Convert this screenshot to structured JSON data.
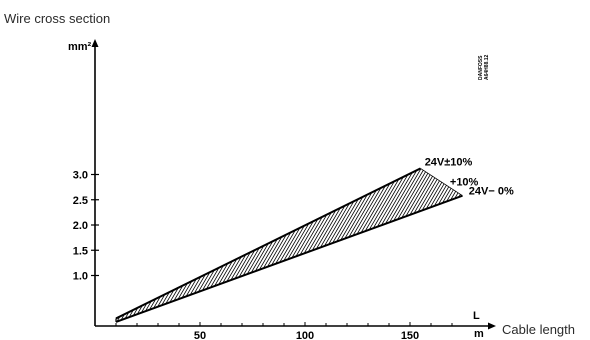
{
  "chart_data": {
    "type": "area",
    "title": "Wire cross section",
    "xlabel": "Cable length",
    "ylabel": "",
    "x_axis_symbol": "L",
    "x_unit": "m",
    "y_unit": "mm²",
    "x_ticks": [
      50,
      100,
      150
    ],
    "y_ticks": [
      "1.0",
      "1.5",
      "2.0",
      "2.5",
      "3.0"
    ],
    "xlim": [
      0,
      180
    ],
    "ylim": [
      0,
      3.6
    ],
    "series": [
      {
        "name": "24V±10%",
        "points": [
          {
            "x": 10,
            "y": 0.15
          },
          {
            "x": 155,
            "y": 3.12
          }
        ]
      },
      {
        "name": "24V+10% −0%",
        "points": [
          {
            "x": 10,
            "y": 0.08
          },
          {
            "x": 175,
            "y": 2.58
          }
        ]
      }
    ],
    "annotations": [
      {
        "text": "24V±10%",
        "x": 157,
        "y": 3.18
      },
      {
        "text": "+10%",
        "x": 169,
        "y": 2.78
      },
      {
        "text": "24V− 0%",
        "x": 178,
        "y": 2.6
      }
    ],
    "fill": "hatched region between the two lines",
    "grid": false,
    "legend": "none",
    "side_code": [
      "DANFOSS",
      "A64H88.12"
    ],
    "colors": {
      "ink": "#000000",
      "outer_text": "#2b2b2b"
    }
  }
}
